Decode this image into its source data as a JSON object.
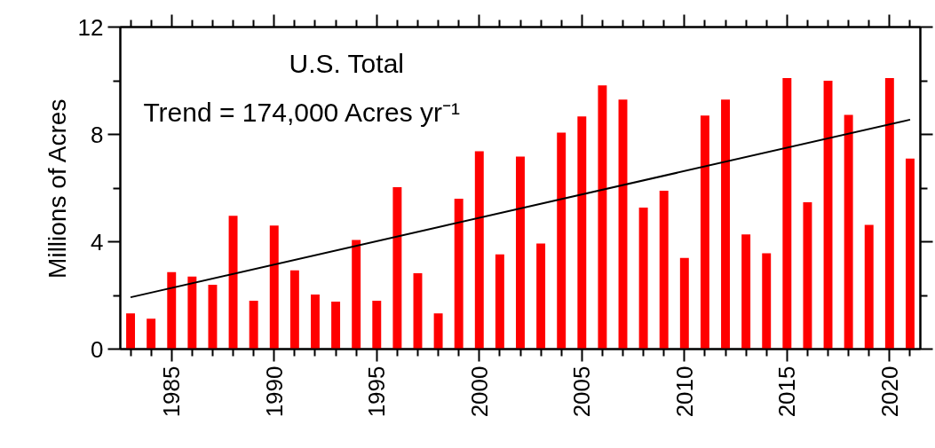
{
  "chart_data": {
    "type": "bar",
    "ylabel": "Millions of Acres",
    "annotations": [
      "U.S. Total",
      "Trend = 174,000 Acres yr⁻¹"
    ],
    "x": [
      1983,
      1984,
      1985,
      1986,
      1987,
      1988,
      1989,
      1990,
      1991,
      1992,
      1993,
      1994,
      1995,
      1996,
      1997,
      1998,
      1999,
      2000,
      2001,
      2002,
      2003,
      2004,
      2005,
      2006,
      2007,
      2008,
      2009,
      2010,
      2011,
      2012,
      2013,
      2014,
      2015,
      2016,
      2017,
      2018,
      2019,
      2020,
      2021
    ],
    "series": [
      {
        "color": "#ff0000",
        "values": [
          1.33,
          1.13,
          2.87,
          2.7,
          2.4,
          4.97,
          1.8,
          4.6,
          2.93,
          2.03,
          1.77,
          4.07,
          1.8,
          6.03,
          2.83,
          1.33,
          5.6,
          7.37,
          3.53,
          7.17,
          3.93,
          8.07,
          8.67,
          9.83,
          9.3,
          5.27,
          5.9,
          3.4,
          8.7,
          9.3,
          4.27,
          3.57,
          10.1,
          5.47,
          10.0,
          8.73,
          4.63,
          10.1,
          7.1
        ]
      },
      {
        "type": "line",
        "color": "#000000",
        "x": [
          1983,
          2021
        ],
        "values": [
          1.93,
          8.55
        ]
      }
    ],
    "xlim": [
      1982.5,
      2021.5
    ],
    "ylim": [
      0,
      12
    ],
    "xticks": [
      {
        "value": 1983,
        "label": null
      },
      {
        "value": 1984,
        "label": null
      },
      1985,
      {
        "value": 1986,
        "label": null
      },
      {
        "value": 1987,
        "label": null
      },
      {
        "value": 1988,
        "label": null
      },
      {
        "value": 1989,
        "label": null
      },
      1990,
      {
        "value": 1991,
        "label": null
      },
      {
        "value": 1992,
        "label": null
      },
      {
        "value": 1993,
        "label": null
      },
      {
        "value": 1994,
        "label": null
      },
      1995,
      {
        "value": 1996,
        "label": null
      },
      {
        "value": 1997,
        "label": null
      },
      {
        "value": 1998,
        "label": null
      },
      {
        "value": 1999,
        "label": null
      },
      2000,
      {
        "value": 2001,
        "label": null
      },
      {
        "value": 2002,
        "label": null
      },
      {
        "value": 2003,
        "label": null
      },
      {
        "value": 2004,
        "label": null
      },
      2005,
      {
        "value": 2006,
        "label": null
      },
      {
        "value": 2007,
        "label": null
      },
      {
        "value": 2008,
        "label": null
      },
      {
        "value": 2009,
        "label": null
      },
      2010,
      {
        "value": 2011,
        "label": null
      },
      {
        "value": 2012,
        "label": null
      },
      {
        "value": 2013,
        "label": null
      },
      {
        "value": 2014,
        "label": null
      },
      2015,
      {
        "value": 2016,
        "label": null
      },
      {
        "value": 2017,
        "label": null
      },
      {
        "value": 2018,
        "label": null
      },
      {
        "value": 2019,
        "label": null
      },
      2020,
      {
        "value": 2021,
        "label": null
      }
    ],
    "yticks": [
      0,
      {
        "value": 2,
        "label": null
      },
      4,
      {
        "value": 6,
        "label": null
      },
      8,
      {
        "value": 10,
        "label": null
      },
      12
    ],
    "grid": false
  }
}
